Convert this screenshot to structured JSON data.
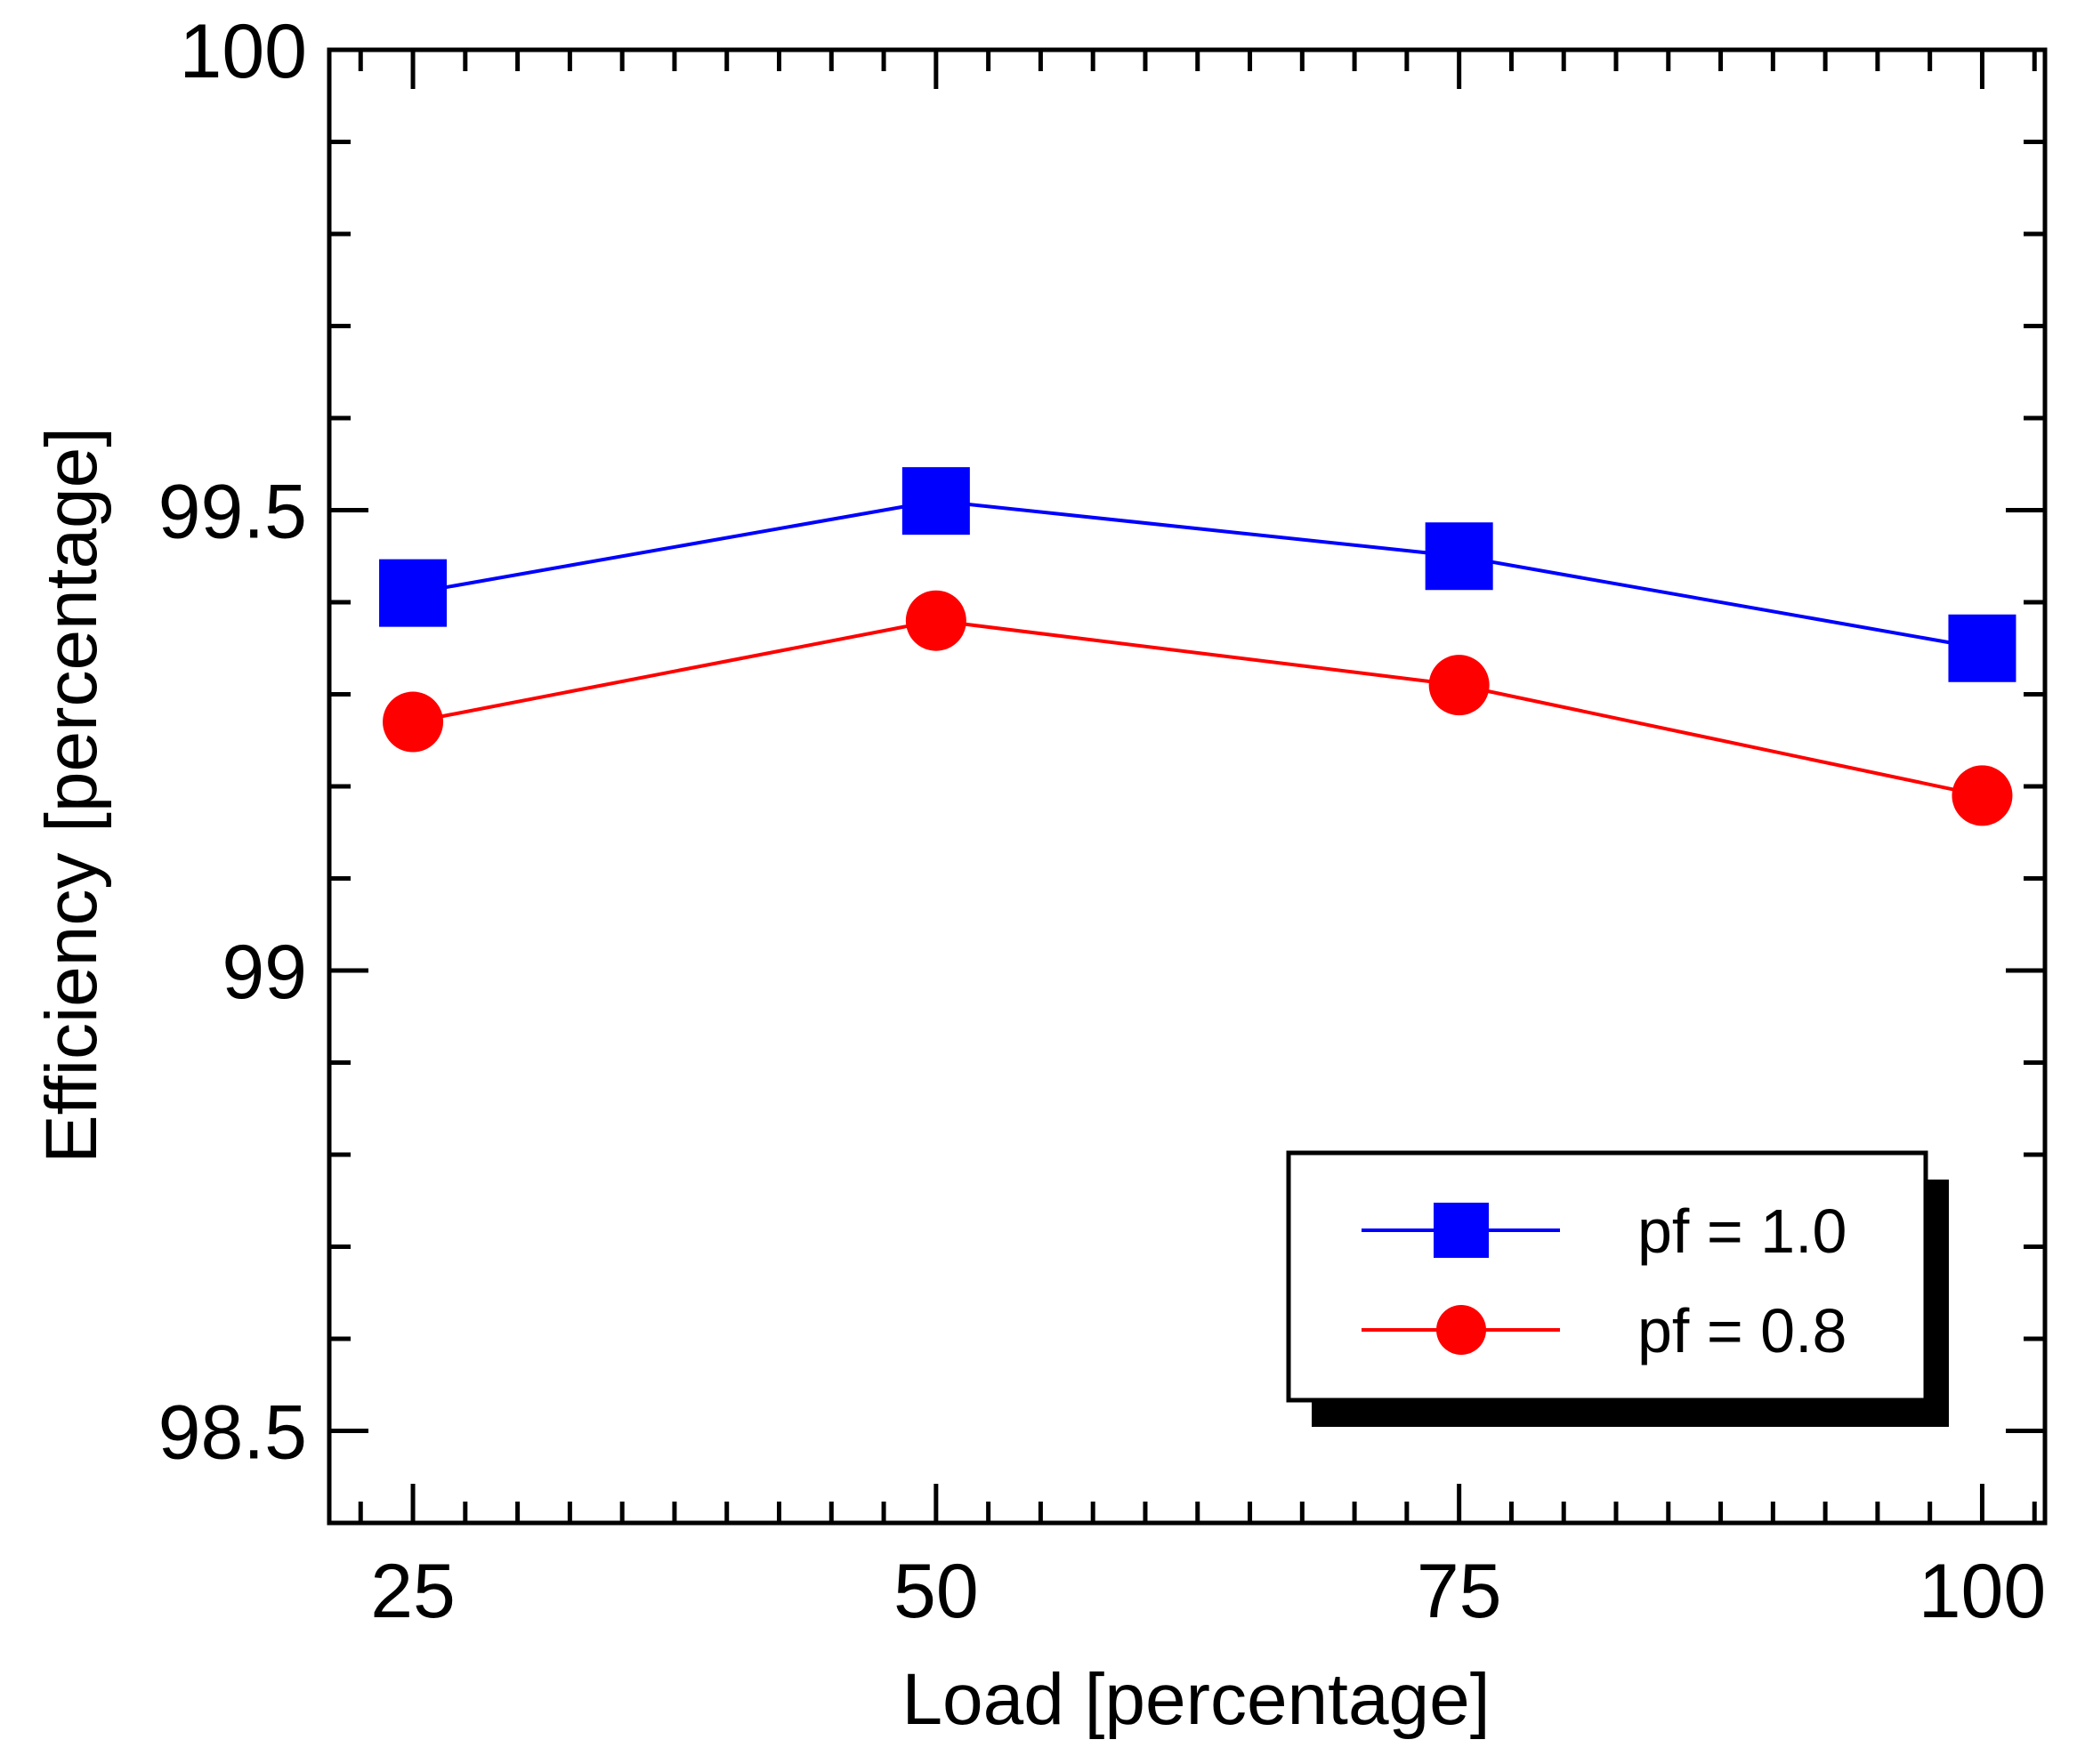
{
  "chart_data": {
    "type": "line",
    "title": "",
    "xlabel": "Load [percentage]",
    "ylabel": "Efficiency [percentage]",
    "x": [
      25,
      50,
      75,
      100
    ],
    "xlim": [
      21,
      103
    ],
    "ylim": [
      98.4,
      100
    ],
    "x_ticks": [
      25,
      50,
      75,
      100
    ],
    "x_tick_labels": [
      "25",
      "50",
      "75",
      "100"
    ],
    "y_ticks": [
      98.5,
      99,
      99.5,
      100
    ],
    "y_tick_labels": [
      "98.5",
      "99",
      "99.5",
      "100"
    ],
    "x_minor_step": 2.5,
    "y_minor_step": 0.1,
    "grid": false,
    "legend_position": "bottom-right",
    "series": [
      {
        "name": "pf = 1.0",
        "values": [
          99.41,
          99.51,
          99.45,
          99.35
        ],
        "color": "#0000ff",
        "marker": "square"
      },
      {
        "name": "pf = 0.8",
        "values": [
          99.27,
          99.38,
          99.31,
          99.19
        ],
        "color": "#ff0000",
        "marker": "circle"
      }
    ]
  }
}
